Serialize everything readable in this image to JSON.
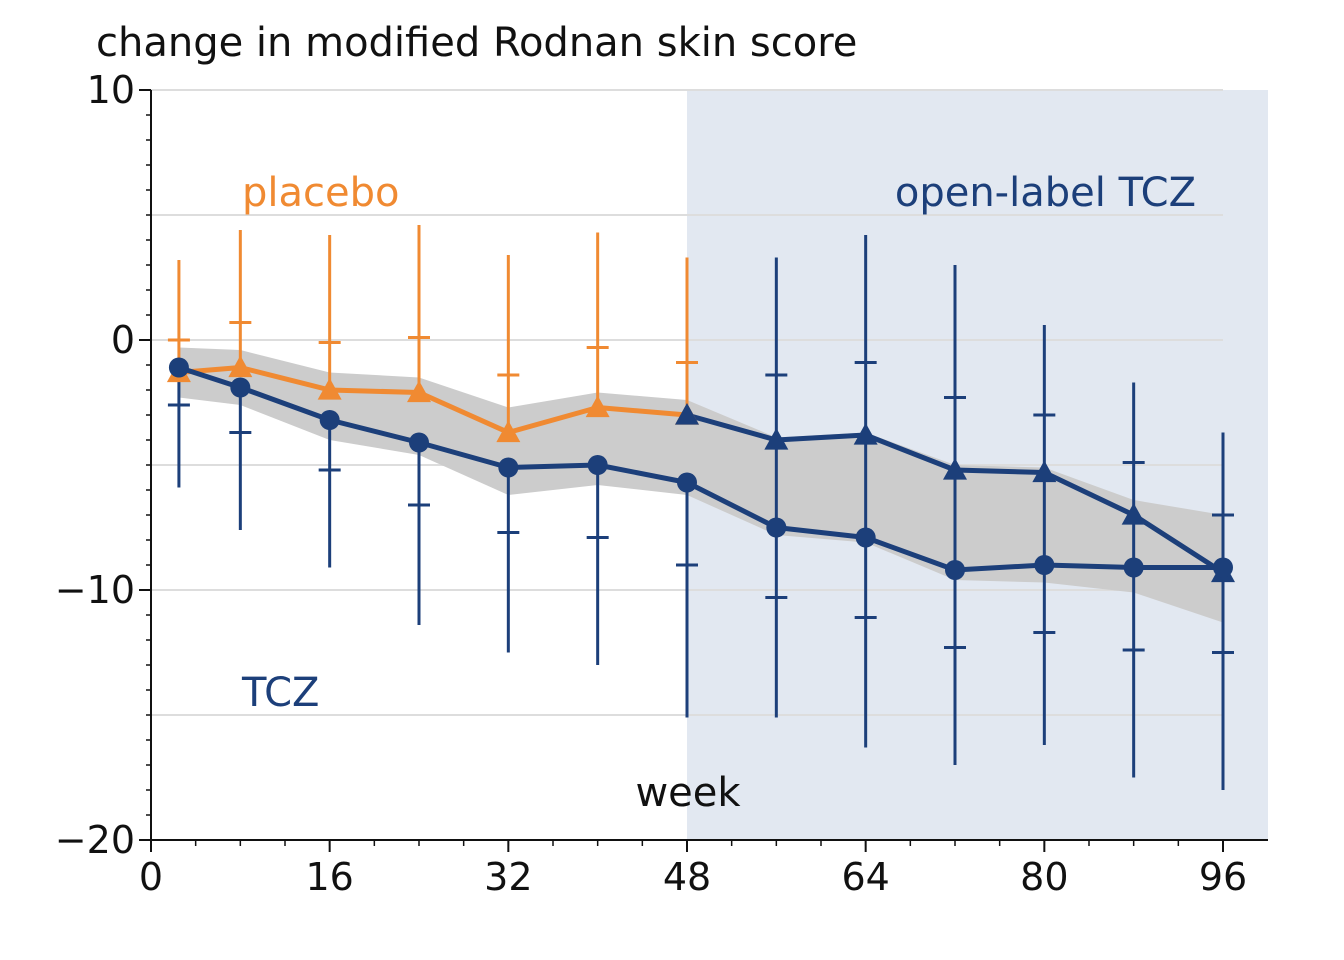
{
  "chart_data": {
    "type": "line",
    "title": "change in modified Rodnan skin score",
    "xlabel": "week",
    "ylabel": "",
    "xlim": [
      0,
      98.5
    ],
    "ylim": [
      -20,
      10
    ],
    "x_ticks": [
      0,
      16,
      32,
      48,
      64,
      80,
      96
    ],
    "y_ticks": [
      10,
      0,
      -10,
      -20
    ],
    "y_tick_labels": [
      "10",
      "0",
      "−10",
      "−20"
    ],
    "grid": true,
    "shaded_region": {
      "x_from": 48,
      "x_to": 100,
      "label": "open-label TCZ",
      "color": "#e2e8f1"
    },
    "series": [
      {
        "name": "placebo",
        "color": "#f08a32",
        "marker": "triangle",
        "points": [
          {
            "x": 2.5,
            "y": -1.3,
            "upper": 3.2,
            "cap": 0.0
          },
          {
            "x": 8,
            "y": -1.1,
            "upper": 4.4,
            "cap": 0.7
          },
          {
            "x": 16,
            "y": -2.0,
            "upper": 4.2,
            "cap": -0.1
          },
          {
            "x": 24,
            "y": -2.1,
            "upper": 4.6,
            "cap": 0.1
          },
          {
            "x": 32,
            "y": -3.7,
            "upper": 3.4,
            "cap": -1.4
          },
          {
            "x": 40,
            "y": -2.7,
            "upper": 4.3,
            "cap": -0.3
          },
          {
            "x": 48,
            "y": -3.0,
            "upper": 3.3,
            "cap": -0.9
          }
        ]
      },
      {
        "name": "",
        "color": "#1c3f7a",
        "marker": "triangle",
        "points": [
          {
            "x": 48,
            "y": -3.0
          },
          {
            "x": 56,
            "y": -4.0,
            "lower": -15.1,
            "upper": 3.3,
            "cap": -1.4
          },
          {
            "x": 64,
            "y": -3.8,
            "lower": -16.3,
            "upper": 4.2,
            "cap": -0.9
          },
          {
            "x": 72,
            "y": -5.2,
            "lower": -17.0,
            "upper": 3.0,
            "cap": -2.3
          },
          {
            "x": 80,
            "y": -5.3,
            "lower": -16.2,
            "upper": 0.6,
            "cap": -3.0
          },
          {
            "x": 88,
            "y": -7.0,
            "lower": -17.5,
            "upper": -1.7,
            "cap": -4.9
          },
          {
            "x": 96,
            "y": -9.3,
            "lower": -18.0,
            "upper": -3.7,
            "cap": -7.0
          }
        ]
      },
      {
        "name": "TCZ",
        "color": "#1c3f7a",
        "marker": "circle",
        "points": [
          {
            "x": 2.5,
            "y": -1.1,
            "lower": -5.9,
            "cap": -2.6
          },
          {
            "x": 8,
            "y": -1.9,
            "lower": -7.6,
            "cap": -3.7
          },
          {
            "x": 16,
            "y": -3.2,
            "lower": -9.1,
            "cap": -5.2
          },
          {
            "x": 24,
            "y": -4.1,
            "lower": -11.4,
            "cap": -6.6
          },
          {
            "x": 32,
            "y": -5.1,
            "lower": -12.5,
            "cap": -7.7
          },
          {
            "x": 40,
            "y": -5.0,
            "lower": -13.0,
            "cap": -7.9
          },
          {
            "x": 48,
            "y": -5.7,
            "lower": -15.1,
            "cap": -9.0
          },
          {
            "x": 56,
            "y": -7.5,
            "cap": -10.3
          },
          {
            "x": 64,
            "y": -7.9,
            "cap": -11.1
          },
          {
            "x": 72,
            "y": -9.2,
            "cap": -12.3
          },
          {
            "x": 80,
            "y": -9.0,
            "cap": -11.7
          },
          {
            "x": 88,
            "y": -9.1,
            "cap": -12.4
          },
          {
            "x": 96,
            "y": -9.1,
            "cap": -12.5
          }
        ]
      }
    ],
    "band": {
      "color": "#cccccc",
      "x": [
        2.5,
        8,
        16,
        24,
        32,
        40,
        48,
        56,
        64,
        72,
        80,
        88,
        96
      ],
      "upper": [
        -0.3,
        -0.4,
        -1.3,
        -1.5,
        -2.7,
        -2.1,
        -2.4,
        -3.9,
        -3.7,
        -5.0,
        -5.1,
        -6.4,
        -7.0
      ],
      "lower": [
        -2.3,
        -2.6,
        -4.0,
        -4.6,
        -6.2,
        -5.8,
        -6.2,
        -7.8,
        -8.1,
        -9.6,
        -9.7,
        -10.1,
        -11.3
      ]
    },
    "annotations": {
      "placebo_label": "placebo",
      "tcz_label": "TCZ",
      "open_label": "open-label TCZ"
    }
  }
}
